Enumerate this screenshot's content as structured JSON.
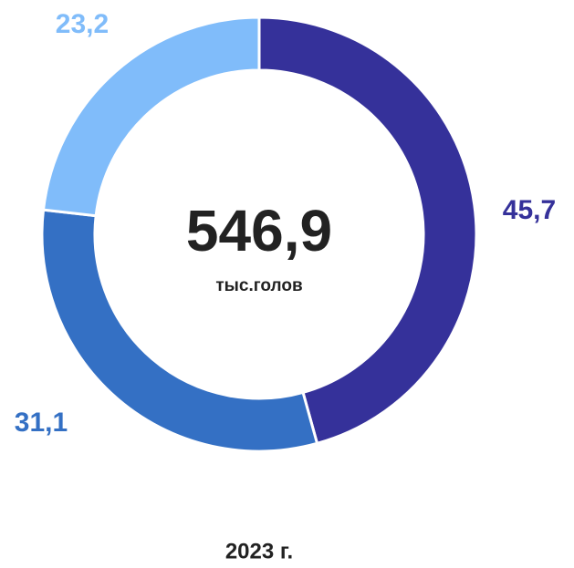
{
  "chart_data": {
    "type": "donut",
    "title": "2023 г.",
    "center_text": "546,9",
    "center_subtext": "тыс.голов",
    "values": [
      45.7,
      31.1,
      23.2
    ],
    "value_labels": [
      "45,7",
      "31,1",
      "23,2"
    ],
    "colors": [
      "#35319a",
      "#3470c4",
      "#80bcfa"
    ]
  }
}
